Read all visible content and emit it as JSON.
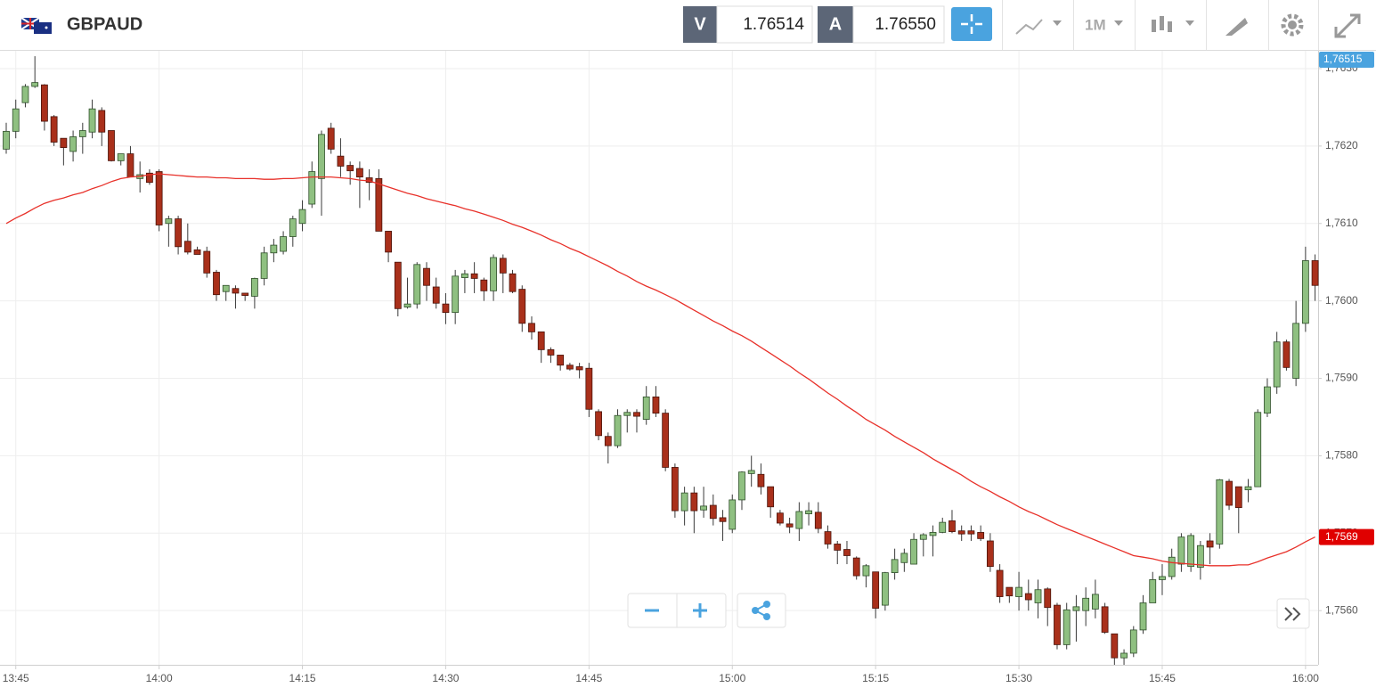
{
  "chart_data": {
    "type": "candlestick",
    "title": "GBPAUD",
    "header": {
      "bid_label": "V",
      "bid": "1.76514",
      "ask_label": "A",
      "ask": "1.76550",
      "timeframe": "1M"
    },
    "price_labels": {
      "current": "1,76515",
      "average": "1,7569"
    },
    "up_color": "#8fc081",
    "down_color": "#a9301b",
    "grid": true,
    "ylim": [
      1.7553,
      1.76323
    ],
    "yticks": [
      {
        "value": 1.756,
        "label": "1,7560"
      },
      {
        "value": 1.757,
        "label": "1,7570"
      },
      {
        "value": 1.758,
        "label": "1,7580"
      },
      {
        "value": 1.759,
        "label": "1,7590"
      },
      {
        "value": 1.76,
        "label": "1,7600"
      },
      {
        "value": 1.761,
        "label": "1,7610"
      },
      {
        "value": 1.762,
        "label": "1,7620"
      },
      {
        "value": 1.763,
        "label": "1,7630"
      }
    ],
    "categories": [
      null,
      "13:45",
      null,
      null,
      null,
      null,
      null,
      null,
      null,
      null,
      null,
      null,
      null,
      null,
      null,
      null,
      "14:00",
      null,
      null,
      null,
      null,
      null,
      null,
      null,
      null,
      null,
      null,
      null,
      null,
      null,
      null,
      "14:15",
      null,
      null,
      null,
      null,
      null,
      null,
      null,
      null,
      null,
      null,
      null,
      null,
      null,
      null,
      "14:30",
      null,
      null,
      null,
      null,
      null,
      null,
      null,
      null,
      null,
      null,
      null,
      null,
      null,
      null,
      "14:45",
      null,
      null,
      null,
      null,
      null,
      null,
      null,
      null,
      null,
      null,
      null,
      null,
      null,
      null,
      "15:00",
      null,
      null,
      null,
      null,
      null,
      null,
      null,
      null,
      null,
      null,
      null,
      null,
      null,
      null,
      "15:15",
      null,
      null,
      null,
      null,
      null,
      null,
      null,
      null,
      null,
      null,
      null,
      null,
      null,
      null,
      "15:30",
      null,
      null,
      null,
      null,
      null,
      null,
      null,
      null,
      null,
      null,
      null,
      null,
      null,
      null,
      "15:45",
      null,
      null,
      null,
      null,
      null,
      null,
      null,
      null,
      null,
      null,
      null,
      null,
      null,
      null,
      "16:00",
      null
    ],
    "open": [
      1.76196,
      1.76219,
      1.76256,
      1.76277,
      1.76279,
      1.76238,
      1.7621,
      1.76193,
      1.76212,
      1.76218,
      1.76246,
      1.7622,
      1.76181,
      1.7619,
      1.76158,
      1.76165,
      1.76167,
      1.761,
      1.76106,
      1.76077,
      1.76066,
      1.76064,
      1.76037,
      1.76012,
      1.76016,
      1.7601,
      1.76006,
      1.76029,
      1.76062,
      1.76064,
      1.76083,
      1.761,
      1.76125,
      1.76158,
      1.76223,
      1.76187,
      1.76175,
      1.76171,
      1.76159,
      1.76158,
      1.7609,
      1.7605,
      1.75992,
      1.75996,
      1.76042,
      1.76018,
      1.75996,
      1.75985,
      1.7603,
      1.76035,
      1.76027,
      1.76013,
      1.76055,
      1.76035,
      1.76015,
      1.75971,
      1.7596,
      1.75937,
      1.7593,
      1.75917,
      1.75915,
      1.75913,
      1.75857,
      1.75825,
      1.75813,
      1.75852,
      1.75856,
      1.75847,
      1.75876,
      1.75855,
      1.75785,
      1.75729,
      1.75752,
      1.7573,
      1.75736,
      1.7572,
      1.75705,
      1.75743,
      1.75777,
      1.75776,
      1.7576,
      1.75726,
      1.75712,
      1.75706,
      1.75725,
      1.75727,
      1.75702,
      1.75686,
      1.75679,
      1.75668,
      1.75645,
      1.7565,
      1.75607,
      1.75649,
      1.75662,
      1.7566,
      1.75692,
      1.75697,
      1.75701,
      1.75716,
      1.75703,
      1.75703,
      1.75701,
      1.7569,
      1.75652,
      1.7563,
      1.75618,
      1.75622,
      1.7561,
      1.75628,
      1.75607,
      1.75556,
      1.756,
      1.756,
      1.75602,
      1.75605,
      1.7557,
      1.75539,
      1.75545,
      1.75575,
      1.7561,
      1.7564,
      1.75644,
      1.7566,
      1.75657,
      1.75656,
      1.7569,
      1.75686,
      1.75767,
      1.7576,
      1.75756,
      1.7576,
      1.75855,
      1.75889,
      1.75947,
      1.759,
      1.75971,
      1.76052
    ],
    "high": [
      1.7623,
      1.7626,
      1.7628,
      1.76316,
      1.7628,
      1.7624,
      1.7621,
      1.7622,
      1.7623,
      1.7626,
      1.7625,
      1.7622,
      1.7619,
      1.762,
      1.7618,
      1.7617,
      1.7617,
      1.7611,
      1.7611,
      1.761,
      1.7607,
      1.7607,
      1.7604,
      1.7602,
      1.7602,
      1.7601,
      1.7603,
      1.7607,
      1.7608,
      1.7609,
      1.7611,
      1.7613,
      1.7618,
      1.7622,
      1.7623,
      1.7621,
      1.7618,
      1.7618,
      1.7617,
      1.7617,
      1.7609,
      1.7605,
      1.7603,
      1.7605,
      1.7605,
      1.7603,
      1.7601,
      1.7604,
      1.7604,
      1.7605,
      1.7603,
      1.7606,
      1.7606,
      1.7604,
      1.7602,
      1.7598,
      1.7596,
      1.7594,
      1.7593,
      1.7592,
      1.7592,
      1.7592,
      1.7586,
      1.7583,
      1.7586,
      1.7586,
      1.7586,
      1.7589,
      1.7589,
      1.7586,
      1.7579,
      1.7576,
      1.7576,
      1.7576,
      1.7575,
      1.7573,
      1.7575,
      1.7578,
      1.758,
      1.7579,
      1.7576,
      1.7573,
      1.7572,
      1.7574,
      1.7574,
      1.7574,
      1.7571,
      1.7569,
      1.7569,
      1.7567,
      1.7566,
      1.7565,
      1.7565,
      1.7568,
      1.7568,
      1.757,
      1.757,
      1.7571,
      1.7572,
      1.7573,
      1.7571,
      1.7571,
      1.7571,
      1.757,
      1.7566,
      1.7563,
      1.7565,
      1.7564,
      1.7564,
      1.7563,
      1.7561,
      1.7561,
      1.7562,
      1.7563,
      1.7564,
      1.7561,
      1.7557,
      1.7555,
      1.7558,
      1.7562,
      1.7565,
      1.7566,
      1.7568,
      1.757,
      1.757,
      1.7569,
      1.757,
      1.7577,
      1.7577,
      1.7576,
      1.7577,
      1.7586,
      1.759,
      1.7596,
      1.7595,
      1.76,
      1.7607,
      1.7606
    ],
    "low": [
      1.7619,
      1.7621,
      1.7625,
      1.76275,
      1.7622,
      1.762,
      1.76175,
      1.7618,
      1.7619,
      1.7621,
      1.762,
      1.7618,
      1.76175,
      1.7616,
      1.7614,
      1.7615,
      1.7609,
      1.7607,
      1.7606,
      1.7606,
      1.7606,
      1.7603,
      1.76,
      1.76,
      1.7599,
      1.76,
      1.7599,
      1.7602,
      1.7605,
      1.7606,
      1.7607,
      1.7609,
      1.7612,
      1.7611,
      1.7619,
      1.7616,
      1.7615,
      1.7612,
      1.7613,
      1.7609,
      1.7605,
      1.7598,
      1.7599,
      1.7599,
      1.76,
      1.7599,
      1.7597,
      1.7597,
      1.7601,
      1.7601,
      1.76,
      1.76,
      1.7601,
      1.7601,
      1.7596,
      1.7595,
      1.7592,
      1.7592,
      1.7591,
      1.7591,
      1.759,
      1.7585,
      1.7582,
      1.7579,
      1.7581,
      1.7583,
      1.7583,
      1.7584,
      1.7585,
      1.7578,
      1.7572,
      1.7571,
      1.757,
      1.7572,
      1.7571,
      1.7569,
      1.757,
      1.7573,
      1.7576,
      1.7575,
      1.7572,
      1.7571,
      1.757,
      1.7569,
      1.7571,
      1.757,
      1.7568,
      1.7566,
      1.7566,
      1.7564,
      1.7563,
      1.7559,
      1.756,
      1.7564,
      1.7565,
      1.7566,
      1.7567,
      1.7567,
      1.757,
      1.757,
      1.7569,
      1.7569,
      1.7569,
      1.7565,
      1.7561,
      1.7561,
      1.756,
      1.756,
      1.7559,
      1.7558,
      1.7555,
      1.7555,
      1.7556,
      1.7558,
      1.7559,
      1.7557,
      1.7553,
      1.7553,
      1.7554,
      1.7557,
      1.7561,
      1.7562,
      1.7564,
      1.7565,
      1.7565,
      1.7564,
      1.7566,
      1.7568,
      1.7573,
      1.757,
      1.7574,
      1.7576,
      1.7585,
      1.7588,
      1.7591,
      1.7589,
      1.7596,
      1.76
    ],
    "close": [
      1.76219,
      1.76248,
      1.76277,
      1.76282,
      1.76232,
      1.76205,
      1.76198,
      1.76212,
      1.7622,
      1.76248,
      1.76218,
      1.76181,
      1.7619,
      1.7616,
      1.76163,
      1.76153,
      1.76098,
      1.76106,
      1.7607,
      1.76063,
      1.7606,
      1.76036,
      1.76008,
      1.7602,
      1.7601,
      1.76007,
      1.76029,
      1.76062,
      1.76072,
      1.76083,
      1.76106,
      1.76118,
      1.76167,
      1.76215,
      1.76196,
      1.76174,
      1.76168,
      1.7616,
      1.76153,
      1.7609,
      1.76063,
      1.7599,
      1.75996,
      1.76047,
      1.7602,
      1.75997,
      1.75985,
      1.76032,
      1.76035,
      1.76029,
      1.76013,
      1.76056,
      1.76036,
      1.76012,
      1.75971,
      1.7596,
      1.75937,
      1.7593,
      1.75917,
      1.75912,
      1.75911,
      1.7586,
      1.75826,
      1.75813,
      1.75852,
      1.75856,
      1.75851,
      1.75876,
      1.75855,
      1.75785,
      1.75729,
      1.75752,
      1.75729,
      1.75735,
      1.75719,
      1.75715,
      1.75743,
      1.75779,
      1.75781,
      1.7576,
      1.75734,
      1.75713,
      1.75708,
      1.75728,
      1.75729,
      1.75706,
      1.75686,
      1.75678,
      1.75671,
      1.75645,
      1.75658,
      1.75603,
      1.75649,
      1.75666,
      1.75674,
      1.75692,
      1.75698,
      1.75701,
      1.75714,
      1.75702,
      1.75699,
      1.75699,
      1.75693,
      1.75657,
      1.75618,
      1.75619,
      1.7563,
      1.75614,
      1.75627,
      1.75604,
      1.75556,
      1.75601,
      1.75605,
      1.75616,
      1.75621,
      1.75572,
      1.75539,
      1.75545,
      1.75575,
      1.7561,
      1.7564,
      1.75644,
      1.75669,
      1.75695,
      1.75697,
      1.75684,
      1.75682,
      1.75769,
      1.75736,
      1.75733,
      1.7576,
      1.75856,
      1.75889,
      1.75947,
      1.75914,
      1.75971,
      1.76052,
      1.7602
    ],
    "moving_average": {
      "color": "#e8312a",
      "values": [
        1.761,
        1.76107,
        1.76113,
        1.7612,
        1.76126,
        1.7613,
        1.76133,
        1.76137,
        1.7614,
        1.76145,
        1.76149,
        1.76154,
        1.76158,
        1.7616,
        1.76161,
        1.76163,
        1.76164,
        1.76163,
        1.76162,
        1.76161,
        1.7616,
        1.7616,
        1.76159,
        1.76159,
        1.76158,
        1.76158,
        1.76158,
        1.76157,
        1.76157,
        1.76158,
        1.76158,
        1.76159,
        1.7616,
        1.7616,
        1.7616,
        1.76159,
        1.76158,
        1.76156,
        1.76155,
        1.76151,
        1.76147,
        1.76143,
        1.76139,
        1.76136,
        1.76132,
        1.76129,
        1.76126,
        1.76123,
        1.76119,
        1.76116,
        1.76112,
        1.76108,
        1.76104,
        1.76099,
        1.76095,
        1.7609,
        1.76085,
        1.76079,
        1.76074,
        1.76068,
        1.76063,
        1.76057,
        1.76051,
        1.76045,
        1.76038,
        1.76032,
        1.76025,
        1.76019,
        1.76014,
        1.76008,
        1.76002,
        1.75995,
        1.75988,
        1.75981,
        1.75974,
        1.75968,
        1.75961,
        1.75955,
        1.75948,
        1.7594,
        1.75932,
        1.75924,
        1.75916,
        1.75907,
        1.75899,
        1.7589,
        1.75881,
        1.75873,
        1.75864,
        1.75856,
        1.75847,
        1.7584,
        1.75833,
        1.75825,
        1.75818,
        1.75811,
        1.75804,
        1.75796,
        1.75789,
        1.75782,
        1.75775,
        1.75767,
        1.7576,
        1.75754,
        1.75747,
        1.75741,
        1.75734,
        1.75728,
        1.75723,
        1.75717,
        1.75711,
        1.75706,
        1.75701,
        1.75696,
        1.75691,
        1.75686,
        1.75681,
        1.75676,
        1.75671,
        1.75669,
        1.75667,
        1.75664,
        1.75662,
        1.75661,
        1.7566,
        1.75659,
        1.75658,
        1.75658,
        1.75658,
        1.75659,
        1.75659,
        1.75663,
        1.75668,
        1.75672,
        1.75676,
        1.75682,
        1.75689,
        1.75695
      ]
    }
  }
}
